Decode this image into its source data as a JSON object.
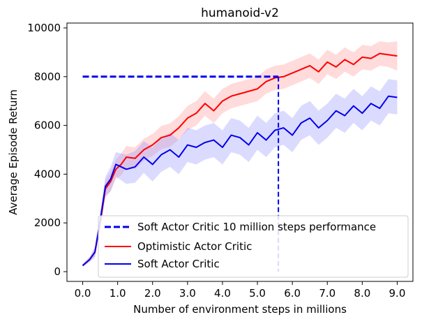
{
  "chart_data": {
    "type": "line",
    "title": "humanoid-v2",
    "xlabel": "Number of environment steps in millions",
    "ylabel": "Average Episode Return",
    "xlim": [
      -0.45,
      9.45
    ],
    "ylim": [
      -400,
      10200
    ],
    "xticks": [
      0,
      1,
      2,
      3,
      4,
      5,
      6,
      7,
      8,
      9
    ],
    "xtick_labels": [
      "0.0",
      "1.0",
      "2.0",
      "3.0",
      "4.0",
      "5.0",
      "6.0",
      "7.0",
      "8.0",
      "9.0"
    ],
    "yticks": [
      0,
      2000,
      4000,
      6000,
      8000,
      10000
    ],
    "ytick_labels": [
      "0",
      "2000",
      "4000",
      "6000",
      "8000",
      "10000"
    ],
    "legend_position": "lower-right",
    "reference": {
      "name": "Soft Actor Critic 10 million steps performance",
      "color": "#0000ee",
      "y": 8000,
      "x_start": 0.0,
      "x_end": 5.6
    },
    "series": [
      {
        "name": "Optimistic Actor Critic",
        "color": "#ff0000",
        "band_color": "#ff9999",
        "x": [
          0.0,
          0.2,
          0.35,
          0.5,
          0.65,
          0.8,
          0.95,
          1.1,
          1.25,
          1.5,
          1.75,
          2.0,
          2.25,
          2.5,
          2.75,
          3.0,
          3.25,
          3.5,
          3.75,
          4.0,
          4.25,
          4.5,
          4.75,
          5.0,
          5.25,
          5.5,
          5.75,
          6.0,
          6.25,
          6.5,
          6.75,
          7.0,
          7.25,
          7.5,
          7.75,
          8.0,
          8.25,
          8.5,
          8.75,
          9.0
        ],
        "y": [
          250,
          500,
          800,
          2000,
          3400,
          3700,
          4200,
          4400,
          4700,
          4650,
          5000,
          5200,
          5500,
          5600,
          5900,
          6300,
          6500,
          6900,
          6600,
          7000,
          7200,
          7300,
          7400,
          7500,
          7800,
          7950,
          8000,
          8150,
          8300,
          8450,
          8200,
          8600,
          8400,
          8700,
          8500,
          8800,
          8750,
          8950,
          8900,
          8850
        ],
        "err": [
          50,
          100,
          200,
          300,
          350,
          400,
          400,
          450,
          450,
          450,
          450,
          450,
          480,
          480,
          480,
          500,
          500,
          500,
          500,
          500,
          500,
          500,
          500,
          500,
          500,
          500,
          500,
          500,
          500,
          500,
          500,
          500,
          500,
          500,
          500,
          500,
          500,
          500,
          500,
          600
        ]
      },
      {
        "name": "Soft Actor Critic",
        "color": "#0000ee",
        "band_color": "#9999ff",
        "x": [
          0.0,
          0.2,
          0.35,
          0.5,
          0.65,
          0.8,
          0.95,
          1.1,
          1.25,
          1.5,
          1.75,
          2.0,
          2.25,
          2.5,
          2.75,
          3.0,
          3.25,
          3.5,
          3.75,
          4.0,
          4.25,
          4.5,
          4.75,
          5.0,
          5.25,
          5.5,
          5.75,
          6.0,
          6.25,
          6.5,
          6.75,
          7.0,
          7.25,
          7.5,
          7.75,
          8.0,
          8.25,
          8.5,
          8.75,
          9.0
        ],
        "y": [
          250,
          500,
          800,
          2100,
          3500,
          3800,
          4400,
          4300,
          4200,
          4300,
          4700,
          4400,
          4800,
          5000,
          4700,
          5200,
          5100,
          5300,
          5400,
          5100,
          5600,
          5500,
          5200,
          5700,
          5400,
          5800,
          5900,
          5600,
          6100,
          6300,
          5900,
          6200,
          6600,
          6400,
          6800,
          6500,
          6900,
          6700,
          7200,
          7150
        ],
        "err": [
          50,
          100,
          200,
          300,
          400,
          500,
          500,
          550,
          600,
          650,
          650,
          700,
          700,
          700,
          700,
          700,
          700,
          700,
          700,
          700,
          700,
          700,
          700,
          700,
          700,
          700,
          700,
          700,
          700,
          700,
          700,
          700,
          700,
          700,
          700,
          700,
          700,
          700,
          700,
          700
        ]
      }
    ]
  }
}
